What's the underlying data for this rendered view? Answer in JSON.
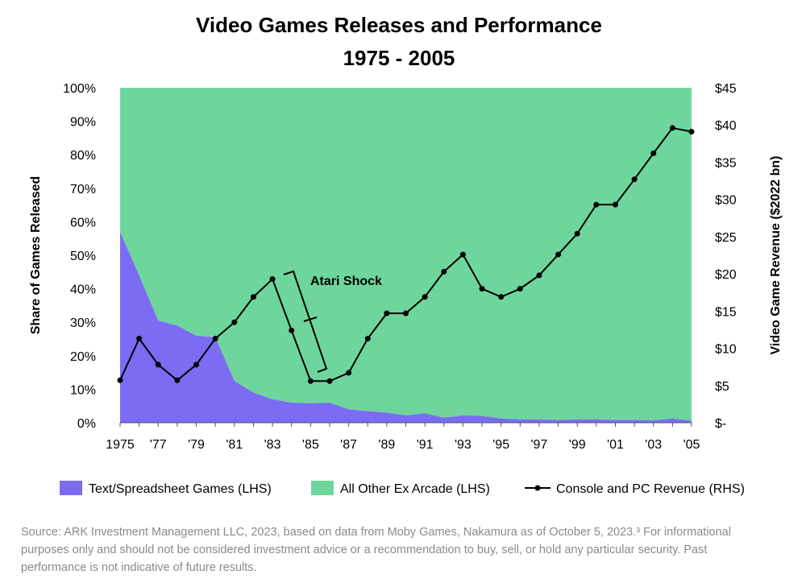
{
  "title_line1": "Video Games Releases and Performance",
  "title_line2": "1975 - 2005",
  "footnote": "Source: ARK Investment Management LLC, 2023, based on data from Moby Games, Nakamura as of October 5, 2023.³ For informational purposes only and should not be considered investment advice or a recommendation to buy, sell, or hold any particular security. Past performance is not indicative of future results.",
  "colors": {
    "text_games": "#7b6cf3",
    "other_games": "#6ed69c",
    "revenue_line": "#000000"
  },
  "chart_data": {
    "type": "area",
    "title": "Video Games Releases and Performance 1975 - 2005",
    "x": [
      1975,
      1976,
      1977,
      1978,
      1979,
      1980,
      1981,
      1982,
      1983,
      1984,
      1985,
      1986,
      1987,
      1988,
      1989,
      1990,
      1991,
      1992,
      1993,
      1994,
      1995,
      1996,
      1997,
      1998,
      1999,
      2000,
      2001,
      2002,
      2003,
      2004,
      2005
    ],
    "x_tick_labels": [
      "1975",
      "'77",
      "'79",
      "'81",
      "'83",
      "'85",
      "'87",
      "'89",
      "'91",
      "'93",
      "'95",
      "'97",
      "'99",
      "'01",
      "'03",
      "'05"
    ],
    "x_tick_years": [
      1975,
      1977,
      1979,
      1981,
      1983,
      1985,
      1987,
      1989,
      1991,
      1993,
      1995,
      1997,
      1999,
      2001,
      2003,
      2005
    ],
    "ylabel_left": "Share of Games Released",
    "ylim_left": [
      0,
      100
    ],
    "yticks_left": [
      "0%",
      "10%",
      "20%",
      "30%",
      "40%",
      "50%",
      "60%",
      "70%",
      "80%",
      "90%",
      "100%"
    ],
    "ylabel_right": "Video Game Revenue ($2022 bn)",
    "ylim_right": [
      0,
      45
    ],
    "yticks_right": [
      "$-",
      "$5",
      "$10",
      "$15",
      "$20",
      "$25",
      "$30",
      "$35",
      "$40",
      "$45"
    ],
    "series": [
      {
        "name": "Text/Spreadsheet Games (LHS)",
        "type": "area",
        "axis": "left",
        "values": [
          57,
          44,
          30.5,
          29,
          26,
          25.5,
          12.5,
          9,
          7,
          6,
          5.8,
          6,
          4,
          3.5,
          3,
          2.2,
          2.8,
          1.5,
          2.2,
          2,
          1.3,
          1,
          1,
          0.8,
          1,
          1,
          0.8,
          0.8,
          0.7,
          1.3,
          0.6
        ]
      },
      {
        "name": "All Other Ex Arcade (LHS)",
        "type": "area",
        "axis": "left",
        "values": [
          43,
          56,
          69.5,
          71,
          74,
          74.5,
          87.5,
          91,
          93,
          94,
          94.2,
          94,
          96,
          96.5,
          97,
          97.8,
          97.2,
          98.5,
          97.8,
          98,
          98.7,
          99,
          99,
          99.2,
          99,
          99,
          99.2,
          99.2,
          99.3,
          98.7,
          99.4
        ]
      },
      {
        "name": "Console and PC Revenue (RHS)",
        "type": "line",
        "axis": "right",
        "values": [
          5.7,
          11.3,
          7.8,
          5.7,
          7.8,
          11.3,
          13.5,
          16.9,
          19.3,
          12.4,
          5.6,
          5.6,
          6.7,
          11.3,
          14.7,
          14.7,
          16.9,
          20.3,
          22.6,
          18,
          16.9,
          18,
          19.8,
          22.6,
          25.4,
          29.3,
          29.3,
          32.7,
          36.2,
          39.6,
          39.1
        ]
      }
    ],
    "annotations": [
      {
        "text": "Atari Shock"
      }
    ],
    "legend_position": "bottom"
  }
}
